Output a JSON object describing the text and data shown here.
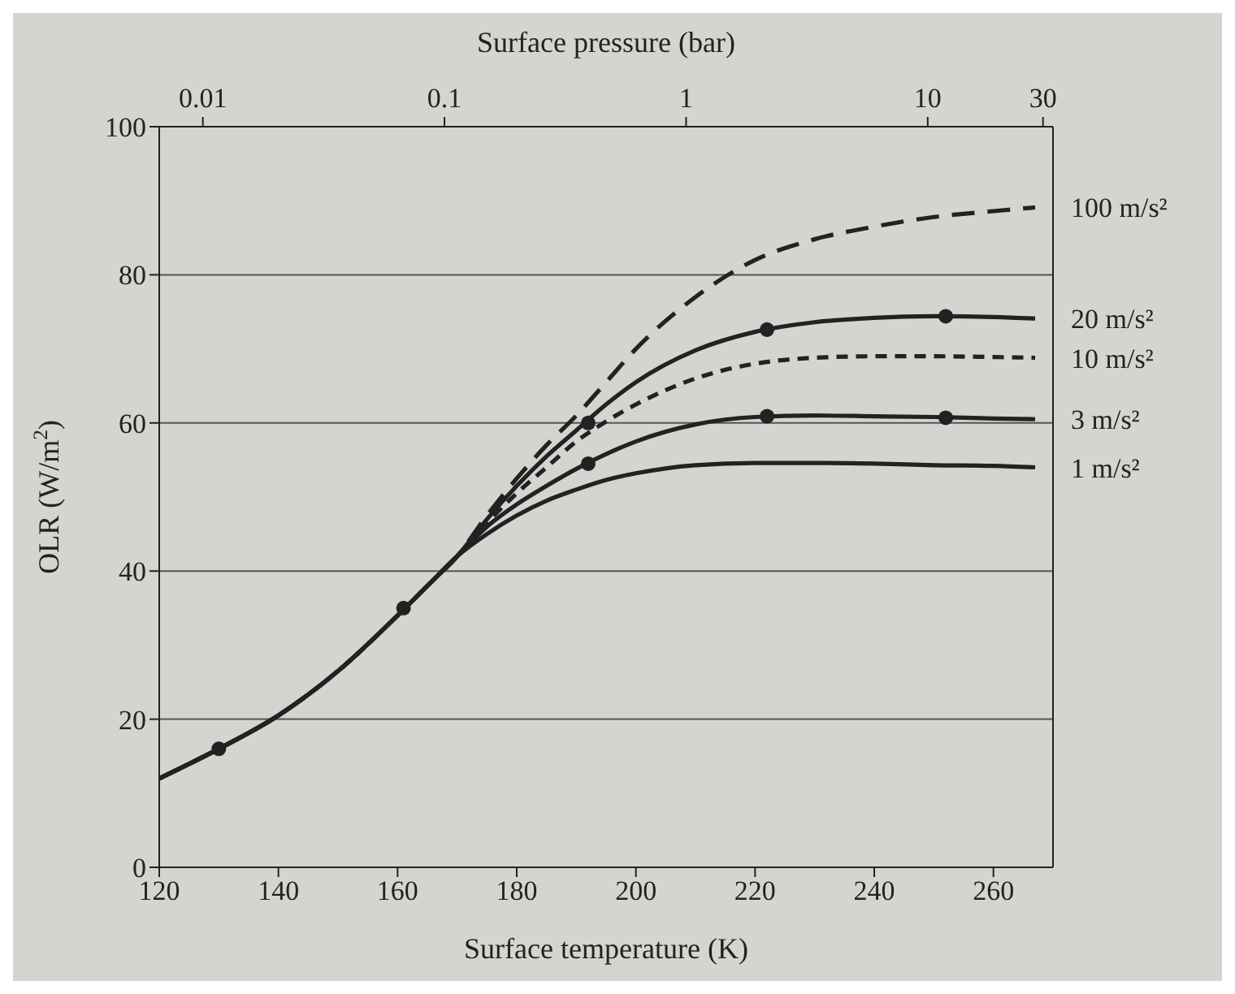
{
  "chart_data": {
    "type": "line",
    "xlabel": "Surface temperature (K)",
    "ylabel": "OLR (W/m$^{2}$)",
    "x2label": "Surface pressure (bar)",
    "xlim": [
      120,
      270
    ],
    "xticks": [
      120,
      140,
      160,
      180,
      200,
      220,
      240,
      260
    ],
    "ylim": [
      0,
      100
    ],
    "yticks": [
      0,
      20,
      40,
      60,
      80,
      100
    ],
    "x2lim": [
      0.0066,
      33
    ],
    "x2ticks": [
      0.01,
      0.1,
      1,
      10,
      30
    ],
    "grid": "y",
    "marker": "none",
    "log": "x2",
    "series": [
      {
        "name": "100 m/s²",
        "color": "#222222",
        "line_style": "dashed",
        "x": [
          120,
          130,
          140,
          150,
          160,
          165,
          170,
          175,
          180,
          185,
          190,
          195,
          200,
          210,
          220,
          230,
          240,
          250,
          260,
          267
        ],
        "values": [
          12,
          16,
          20.5,
          26.5,
          34,
          38,
          42,
          47.5,
          52.5,
          57,
          61,
          65.5,
          70,
          77,
          82,
          84.8,
          86.5,
          87.8,
          88.6,
          89.1
        ]
      },
      {
        "name": "20 m/s²",
        "color": "#222222",
        "line_style": "solid",
        "x": [
          120,
          130,
          140,
          150,
          160,
          165,
          170,
          175,
          180,
          185,
          190,
          195,
          200,
          210,
          220,
          230,
          240,
          250,
          260,
          267
        ],
        "values": [
          12,
          16,
          20.5,
          26.5,
          34,
          38,
          42,
          47,
          51.5,
          55.5,
          59,
          62.5,
          65.5,
          69.8,
          72.3,
          73.6,
          74.2,
          74.4,
          74.3,
          74.1
        ]
      },
      {
        "name": "10 m/s²",
        "color": "#222222",
        "line_style": "dashed",
        "x": [
          120,
          130,
          140,
          150,
          160,
          165,
          170,
          175,
          180,
          185,
          190,
          195,
          200,
          210,
          220,
          230,
          240,
          250,
          260,
          267
        ],
        "values": [
          12,
          16,
          20.5,
          26.5,
          34,
          38,
          42,
          46.5,
          50.5,
          54,
          57.5,
          60.2,
          62.5,
          66,
          68,
          68.8,
          69,
          69,
          68.9,
          68.8
        ]
      },
      {
        "name": "3 m/s²",
        "color": "#222222",
        "line_style": "solid",
        "x": [
          120,
          130,
          140,
          150,
          160,
          165,
          170,
          175,
          180,
          185,
          190,
          195,
          200,
          210,
          220,
          230,
          240,
          250,
          260,
          267
        ],
        "values": [
          12,
          16,
          20.5,
          26.5,
          34,
          38,
          42,
          46,
          49,
          51.5,
          53.8,
          55.8,
          57.5,
          59.8,
          60.8,
          61,
          60.9,
          60.8,
          60.6,
          60.5
        ]
      },
      {
        "name": "1 m/s²",
        "color": "#222222",
        "line_style": "solid",
        "x": [
          120,
          130,
          140,
          150,
          160,
          165,
          170,
          175,
          180,
          185,
          190,
          195,
          200,
          210,
          220,
          230,
          240,
          250,
          260,
          267
        ],
        "values": [
          12,
          16,
          20.5,
          26.5,
          34,
          38,
          42,
          45,
          47.5,
          49.5,
          51,
          52.3,
          53.2,
          54.3,
          54.6,
          54.6,
          54.5,
          54.3,
          54.2,
          54
        ]
      },
      {
        "type": "scatter",
        "color": "#222222",
        "marker": "circle",
        "x": [
          130,
          161,
          192,
          222,
          252
        ],
        "values": [
          16,
          35,
          60,
          72.6,
          74.4
        ]
      },
      {
        "type": "scatter",
        "color": "#222222",
        "marker": "circle",
        "x": [
          192,
          222,
          252
        ],
        "values": [
          54.5,
          60.9,
          60.7
        ]
      }
    ]
  }
}
